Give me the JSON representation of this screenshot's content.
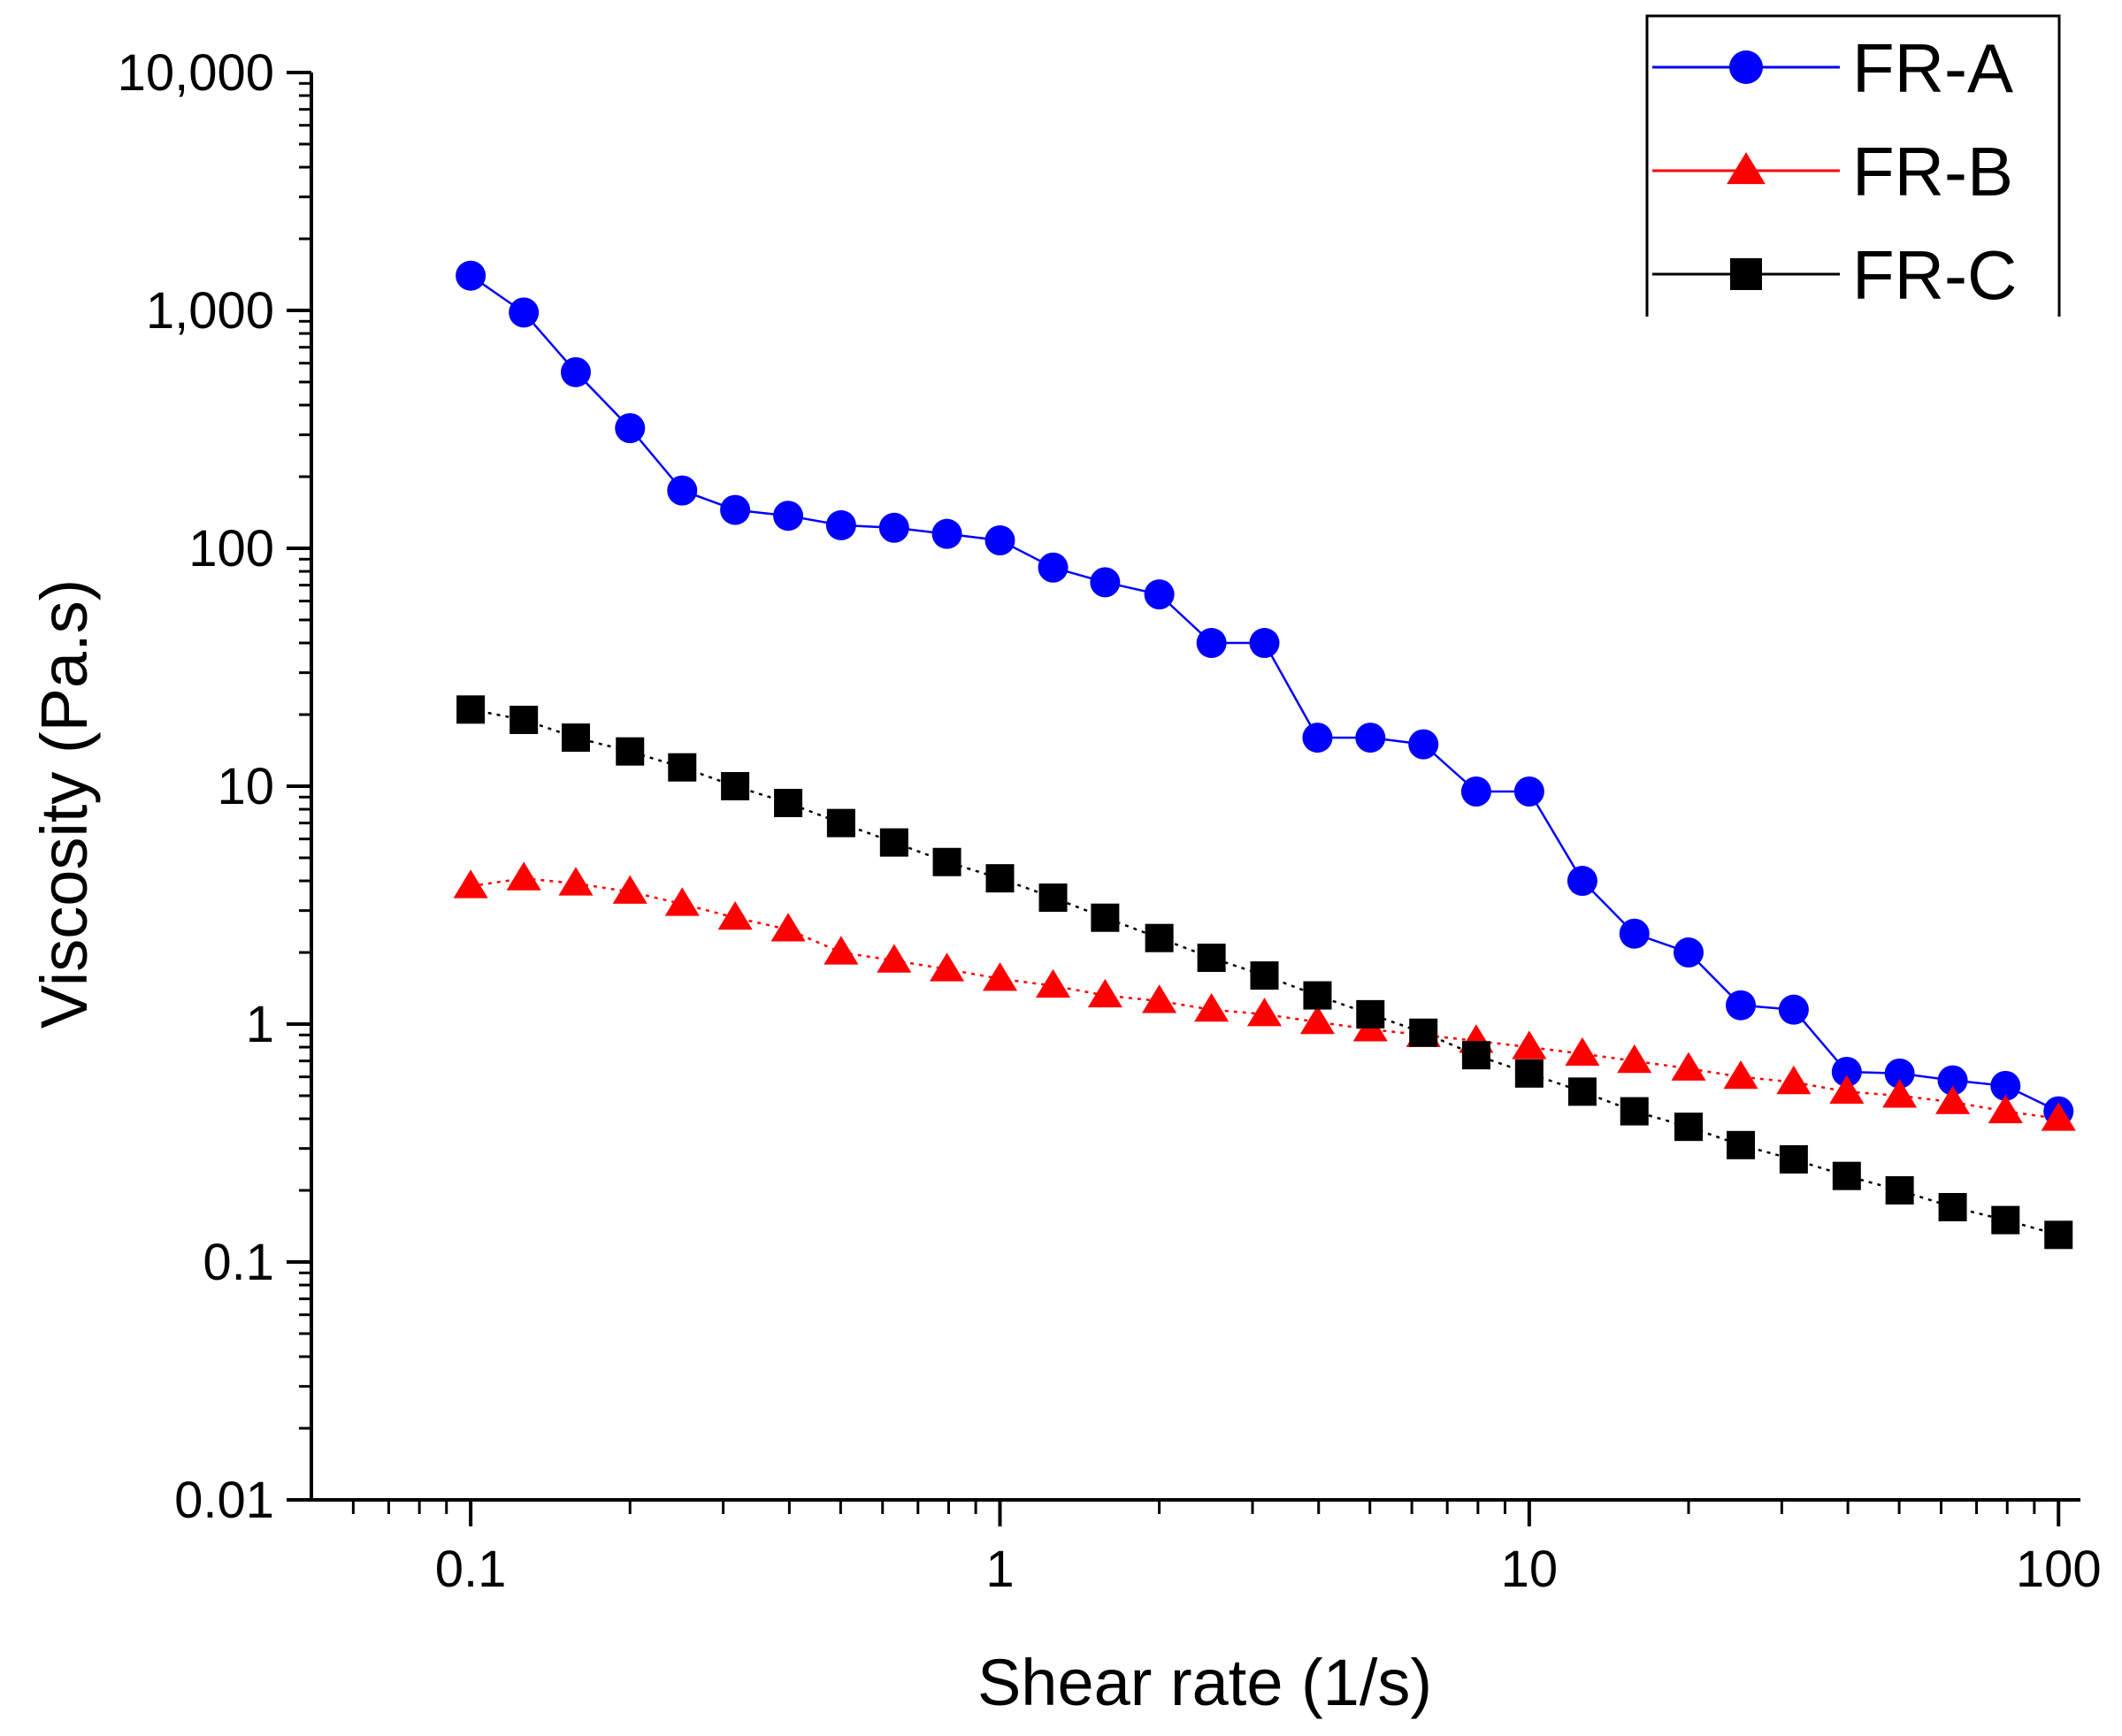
{
  "chart_data": {
    "type": "line",
    "title": "",
    "xlabel": "Shear rate (1/s)",
    "ylabel": "Viscosity (Pa.s)",
    "xscale": "log",
    "yscale": "log",
    "xlim": [
      0.05,
      110
    ],
    "ylim": [
      0.01,
      10000
    ],
    "xticks": [
      {
        "value": 0.1,
        "label": "0.1"
      },
      {
        "value": 1,
        "label": "1"
      },
      {
        "value": 10,
        "label": "10"
      },
      {
        "value": 100,
        "label": "100"
      }
    ],
    "yticks": [
      {
        "value": 0.01,
        "label": "0.01"
      },
      {
        "value": 0.1,
        "label": "0.1"
      },
      {
        "value": 1,
        "label": "1"
      },
      {
        "value": 10,
        "label": "10"
      },
      {
        "value": 100,
        "label": "100"
      },
      {
        "value": 1000,
        "label": "1,000"
      },
      {
        "value": 10000,
        "label": "10,000"
      }
    ],
    "legend_position": "top-right",
    "x": [
      0.1,
      0.126,
      0.158,
      0.2,
      0.251,
      0.316,
      0.398,
      0.501,
      0.631,
      0.794,
      1,
      1.26,
      1.58,
      2,
      2.51,
      3.16,
      3.98,
      5.01,
      6.31,
      7.94,
      10,
      12.6,
      15.8,
      20,
      25.1,
      31.6,
      39.8,
      50.1,
      63.1,
      79.4,
      100
    ],
    "series": [
      {
        "name": "FR-A",
        "color": "#0000ff",
        "marker": "circle",
        "line_style": "solid",
        "values": [
          1400,
          980,
          550,
          320,
          175,
          145,
          137,
          125,
          122,
          115,
          108,
          83,
          72,
          64,
          40,
          40,
          16,
          16,
          15,
          9.5,
          9.5,
          4.0,
          2.4,
          2.0,
          1.2,
          1.15,
          0.63,
          0.62,
          0.58,
          0.55,
          0.43
        ]
      },
      {
        "name": "FR-B",
        "color": "#ff0000",
        "marker": "triangle",
        "line_style": "dotted",
        "values": [
          3.8,
          4.1,
          3.9,
          3.6,
          3.2,
          2.8,
          2.5,
          2.0,
          1.85,
          1.7,
          1.55,
          1.45,
          1.32,
          1.25,
          1.15,
          1.1,
          1.02,
          0.95,
          0.9,
          0.85,
          0.8,
          0.75,
          0.7,
          0.65,
          0.6,
          0.57,
          0.52,
          0.5,
          0.47,
          0.43,
          0.4
        ]
      },
      {
        "name": "FR-C",
        "color": "#000000",
        "marker": "square",
        "line_style": "dotted",
        "values": [
          21,
          19,
          16,
          14,
          12,
          10,
          8.5,
          7.0,
          5.8,
          4.8,
          4.1,
          3.4,
          2.8,
          2.3,
          1.9,
          1.6,
          1.32,
          1.1,
          0.92,
          0.74,
          0.62,
          0.52,
          0.43,
          0.37,
          0.31,
          0.27,
          0.23,
          0.2,
          0.17,
          0.15,
          0.13
        ]
      }
    ]
  }
}
